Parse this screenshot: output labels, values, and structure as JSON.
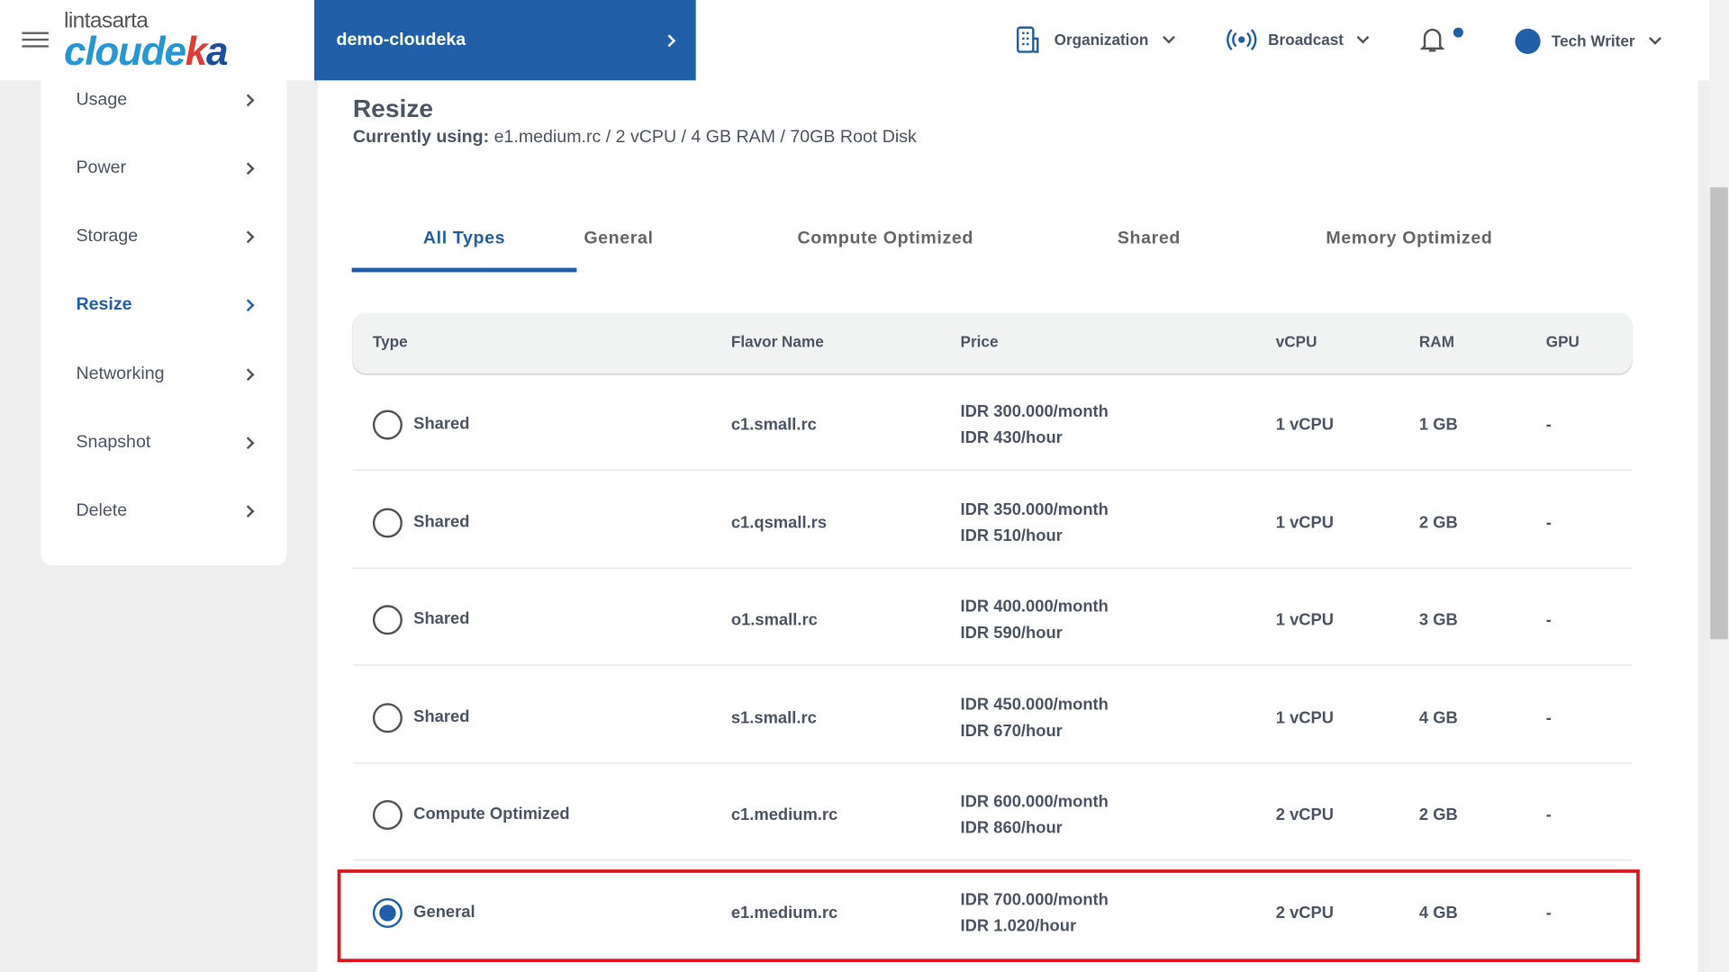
{
  "header": {
    "logo_top": "lintasarta",
    "logo_main": "cloudeka",
    "project": "demo-cloudeka",
    "organization": "Organization",
    "broadcast": "Broadcast",
    "user": "Tech Writer"
  },
  "sidebar": {
    "items": [
      {
        "label": "Usage"
      },
      {
        "label": "Power"
      },
      {
        "label": "Storage"
      },
      {
        "label": "Resize",
        "active": true
      },
      {
        "label": "Networking"
      },
      {
        "label": "Snapshot"
      },
      {
        "label": "Delete"
      }
    ]
  },
  "page": {
    "title": "Resize",
    "current_label": "Currently using:",
    "current_value": "e1.medium.rc / 2 vCPU / 4 GB RAM / 70GB Root Disk"
  },
  "tabs": [
    "All Types",
    "General",
    "Compute Optimized",
    "Shared",
    "Memory Optimized"
  ],
  "active_tab": "All Types",
  "table": {
    "headers": [
      "Type",
      "Flavor Name",
      "Price",
      "vCPU",
      "RAM",
      "GPU"
    ],
    "rows": [
      {
        "type": "Shared",
        "flavor": "c1.small.rc",
        "month": "IDR 300.000/month",
        "hour": "IDR 430/hour",
        "vcpu": "1 vCPU",
        "ram": "1 GB",
        "gpu": "-",
        "selected": false
      },
      {
        "type": "Shared",
        "flavor": "c1.qsmall.rs",
        "month": "IDR 350.000/month",
        "hour": "IDR 510/hour",
        "vcpu": "1 vCPU",
        "ram": "2 GB",
        "gpu": "-",
        "selected": false
      },
      {
        "type": "Shared",
        "flavor": "o1.small.rc",
        "month": "IDR 400.000/month",
        "hour": "IDR 590/hour",
        "vcpu": "1 vCPU",
        "ram": "3 GB",
        "gpu": "-",
        "selected": false
      },
      {
        "type": "Shared",
        "flavor": "s1.small.rc",
        "month": "IDR 450.000/month",
        "hour": "IDR 670/hour",
        "vcpu": "1 vCPU",
        "ram": "4 GB",
        "gpu": "-",
        "selected": false
      },
      {
        "type": "Compute Optimized",
        "flavor": "c1.medium.rc",
        "month": "IDR 600.000/month",
        "hour": "IDR 860/hour",
        "vcpu": "2 vCPU",
        "ram": "2 GB",
        "gpu": "-",
        "selected": false
      },
      {
        "type": "General",
        "flavor": "e1.medium.rc",
        "month": "IDR 700.000/month",
        "hour": "IDR 1.020/hour",
        "vcpu": "2 vCPU",
        "ram": "4 GB",
        "gpu": "-",
        "selected": true
      }
    ]
  },
  "colors": {
    "brand": "#2160a8",
    "highlight": "#e0141e"
  }
}
